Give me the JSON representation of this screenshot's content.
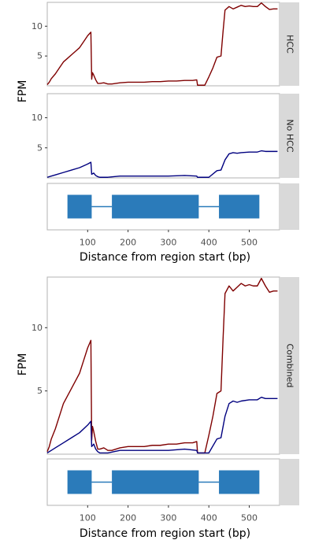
{
  "colors": {
    "hcc": "#7f0000",
    "no_hcc": "#00007f",
    "exon": "#2b7bba",
    "strip": "#d9d9d9",
    "panel_border": "#b3b3b3"
  },
  "chart_data": [
    {
      "type": "line",
      "facets": [
        {
          "label": "HCC",
          "series": [
            {
              "x": [
                0,
                5,
                10,
                20,
                30,
                40,
                50,
                60,
                70,
                80,
                90,
                100,
                108,
                110,
                112,
                115,
                120,
                125,
                130,
                140,
                150,
                160,
                180,
                200,
                220,
                240,
                260,
                280,
                300,
                320,
                340,
                360,
                370,
                372,
                374,
                390,
                400,
                410,
                420,
                430,
                435,
                440,
                450,
                460,
                470,
                480,
                490,
                500,
                510,
                520,
                530,
                540,
                550,
                560,
                570
              ],
              "y": [
                0.2,
                0.6,
                1.2,
                2.0,
                3.0,
                4.0,
                4.6,
                5.2,
                5.8,
                6.4,
                7.4,
                8.4,
                9.0,
                1.1,
                2.2,
                1.8,
                1.0,
                0.4,
                0.4,
                0.5,
                0.3,
                0.3,
                0.5,
                0.6,
                0.6,
                0.6,
                0.7,
                0.7,
                0.8,
                0.8,
                0.9,
                0.9,
                1.0,
                0.1,
                0.1,
                0.1,
                1.5,
                3.0,
                4.8,
                5.0,
                9.0,
                12.7,
                13.3,
                12.9,
                13.2,
                13.5,
                13.3,
                13.4,
                13.3,
                13.3,
                13.9,
                13.3,
                12.8,
                12.9,
                12.9
              ]
            }
          ]
        },
        {
          "label": "No HCC",
          "series": [
            {
              "x": [
                0,
                10,
                20,
                40,
                60,
                80,
                100,
                108,
                110,
                115,
                120,
                125,
                130,
                150,
                180,
                200,
                260,
                300,
                340,
                370,
                372,
                400,
                420,
                430,
                440,
                450,
                460,
                470,
                480,
                500,
                520,
                530,
                540,
                560,
                570
              ],
              "y": [
                0.1,
                0.3,
                0.5,
                0.9,
                1.3,
                1.7,
                2.3,
                2.6,
                0.6,
                0.8,
                0.4,
                0.2,
                0.1,
                0.1,
                0.3,
                0.3,
                0.3,
                0.3,
                0.4,
                0.3,
                0.1,
                0.1,
                1.2,
                1.3,
                3.0,
                4.0,
                4.2,
                4.1,
                4.2,
                4.3,
                4.3,
                4.5,
                4.4,
                4.4,
                4.4
              ]
            }
          ]
        }
      ],
      "ylabel": "FPM",
      "yticks": [
        5,
        10
      ],
      "ylim": [
        0,
        14
      ],
      "xlim": [
        0,
        575
      ],
      "grid": false
    },
    {
      "type": "line",
      "facets": [
        {
          "label": "Combined",
          "series": [
            {
              "name": "HCC",
              "x": [
                0,
                5,
                10,
                20,
                30,
                40,
                50,
                60,
                70,
                80,
                90,
                100,
                108,
                110,
                112,
                115,
                120,
                125,
                130,
                140,
                150,
                160,
                180,
                200,
                220,
                240,
                260,
                280,
                300,
                320,
                340,
                360,
                370,
                372,
                374,
                390,
                400,
                410,
                420,
                430,
                435,
                440,
                450,
                460,
                470,
                480,
                490,
                500,
                510,
                520,
                530,
                540,
                550,
                560,
                570
              ],
              "y": [
                0.2,
                0.6,
                1.2,
                2.0,
                3.0,
                4.0,
                4.6,
                5.2,
                5.8,
                6.4,
                7.4,
                8.4,
                9.0,
                1.1,
                2.2,
                1.8,
                1.0,
                0.4,
                0.4,
                0.5,
                0.3,
                0.3,
                0.5,
                0.6,
                0.6,
                0.6,
                0.7,
                0.7,
                0.8,
                0.8,
                0.9,
                0.9,
                1.0,
                0.1,
                0.1,
                0.1,
                1.5,
                3.0,
                4.8,
                5.0,
                9.0,
                12.7,
                13.3,
                12.9,
                13.2,
                13.5,
                13.3,
                13.4,
                13.3,
                13.3,
                13.9,
                13.3,
                12.8,
                12.9,
                12.9
              ]
            },
            {
              "name": "No HCC",
              "x": [
                0,
                10,
                20,
                40,
                60,
                80,
                100,
                108,
                110,
                115,
                120,
                125,
                130,
                150,
                180,
                200,
                260,
                300,
                340,
                370,
                372,
                400,
                420,
                430,
                440,
                450,
                460,
                470,
                480,
                500,
                520,
                530,
                540,
                560,
                570
              ],
              "y": [
                0.1,
                0.3,
                0.5,
                0.9,
                1.3,
                1.7,
                2.3,
                2.6,
                0.6,
                0.8,
                0.4,
                0.2,
                0.1,
                0.1,
                0.3,
                0.3,
                0.3,
                0.3,
                0.4,
                0.3,
                0.1,
                0.1,
                1.2,
                1.3,
                3.0,
                4.0,
                4.2,
                4.1,
                4.2,
                4.3,
                4.3,
                4.5,
                4.4,
                4.4,
                4.4
              ]
            }
          ]
        }
      ],
      "ylabel": "FPM",
      "yticks": [
        5,
        10
      ],
      "ylim": [
        0,
        14
      ],
      "xlim": [
        0,
        575
      ],
      "grid": false
    }
  ],
  "gene_tracks": [
    {
      "exons": [
        [
          50,
          110
        ],
        [
          160,
          375
        ],
        [
          425,
          525
        ]
      ],
      "introns": [
        [
          110,
          160
        ],
        [
          375,
          425
        ]
      ],
      "xticks": [
        100,
        200,
        300,
        400,
        500
      ],
      "xlabel": "Distance from region start (bp)",
      "xlim": [
        0,
        575
      ]
    },
    {
      "exons": [
        [
          50,
          110
        ],
        [
          160,
          375
        ],
        [
          425,
          525
        ]
      ],
      "introns": [
        [
          110,
          160
        ],
        [
          375,
          425
        ]
      ],
      "xticks": [
        100,
        200,
        300,
        400,
        500
      ],
      "xlabel": "Distance from region start (bp)",
      "xlim": [
        0,
        575
      ]
    }
  ]
}
